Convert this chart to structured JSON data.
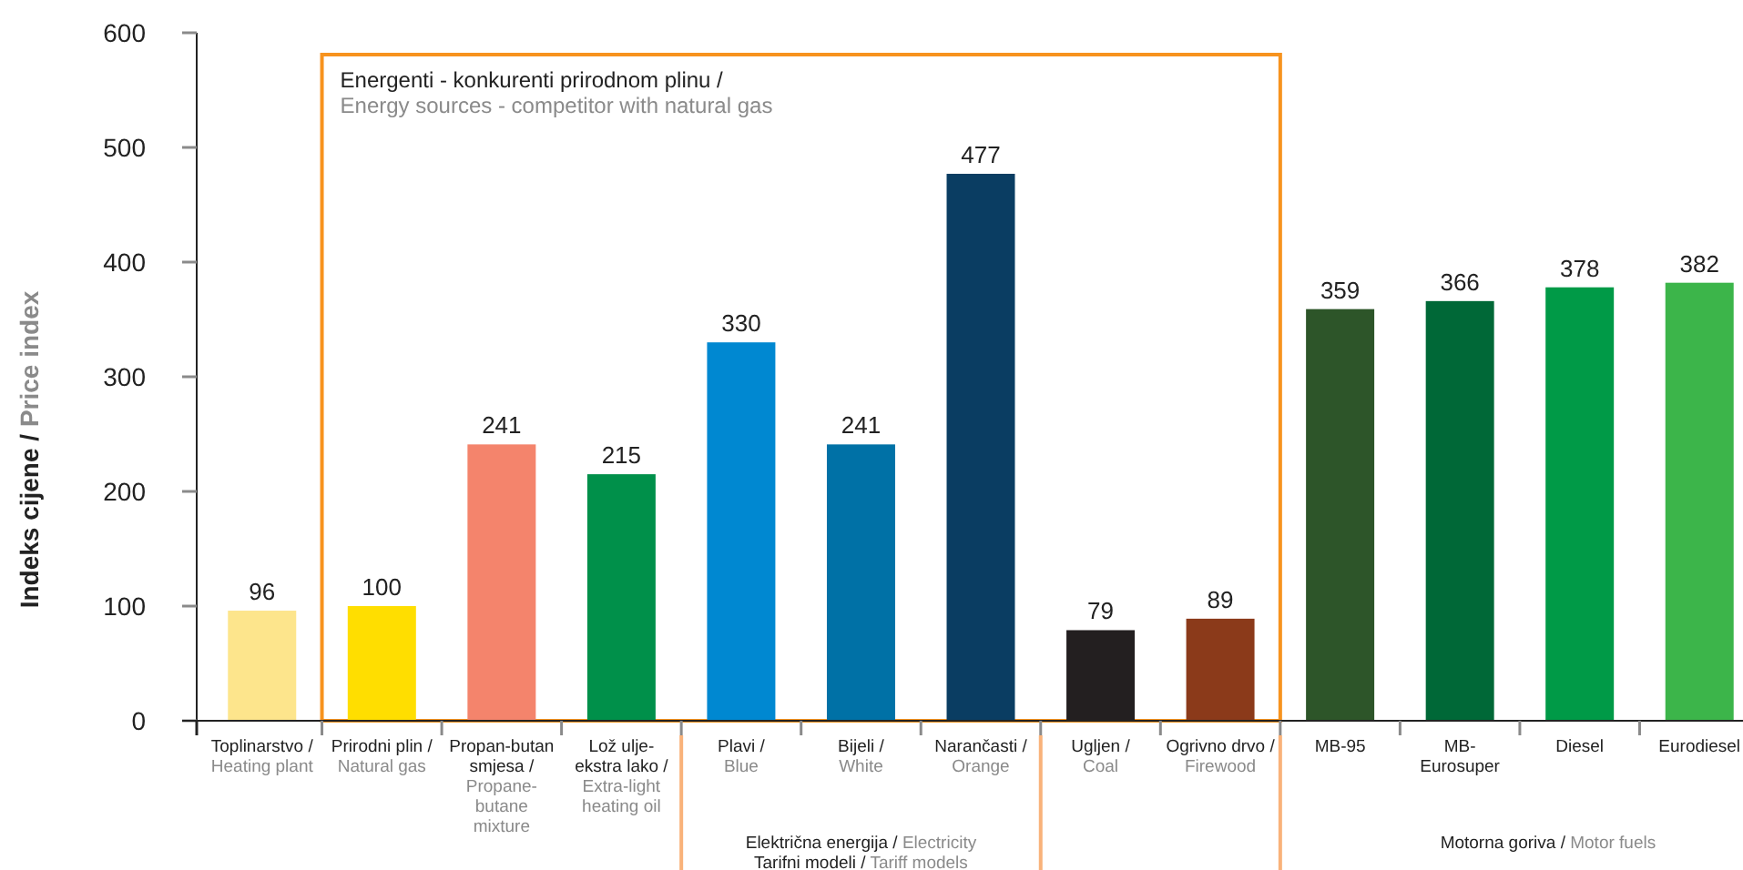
{
  "chart_data": {
    "type": "bar",
    "ylabel": "Indeks cijene / Price index",
    "categories": [
      "Toplinarstvo /\nHeating plant",
      "Prirodni plin /\nNatural gas",
      "Propan-butan\nsmjesa /\nPropane-\nbutane\nmixture",
      "Lož ulje-\nekstra lako /\nExtra-light\nheating oil",
      "Plavi /\nBlue",
      "Bijeli /\nWhite",
      "Narančasti /\nOrange",
      "Ugljen /\nCoal",
      "Ogrivno drvo /\nFirewood",
      "MB-95",
      "MB-\nEurosuper",
      "Diesel",
      "Eurodiesel"
    ],
    "values": [
      96,
      100,
      241,
      215,
      330,
      241,
      477,
      79,
      89,
      359,
      366,
      378,
      382
    ],
    "colors": [
      "#fde58c",
      "#ffde00",
      "#f4846c",
      "#00904a",
      "#0088d1",
      "#0071a6",
      "#0a3d62",
      "#231f20",
      "#8b3a1a",
      "#2d5529",
      "#006837",
      "#009a47",
      "#3cb54a"
    ],
    "ylim": [
      0,
      600
    ],
    "yticks": [
      0,
      100,
      200,
      300,
      400,
      500,
      600
    ],
    "grid": false,
    "data_labels": true,
    "annotations": [
      "Energenti - konkurenti prirodnom plinu /\nEnergy sources - competitor with natural gas",
      "Električna energija / Electricity\nTarifni modeli / Tariff models",
      "Motorna goriva / Motor fuels"
    ]
  }
}
